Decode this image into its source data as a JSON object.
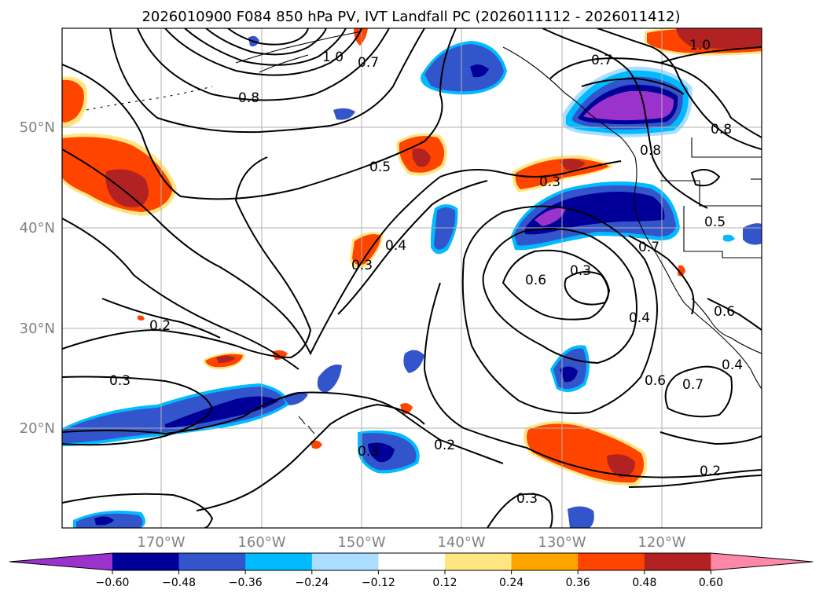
{
  "title": "2026010900 F084 850 hPa PV, IVT Landfall PC (2026011112 - 2026011412)",
  "lat_labels": [
    "50°N",
    "40°N",
    "30°N",
    "20°N"
  ],
  "lon_labels": [
    "170°W",
    "160°W",
    "150°W",
    "140°W",
    "130°W",
    "120°W"
  ],
  "colorbar": {
    "colors": [
      "#9933cc",
      "#000099",
      "#3355cc",
      "#00bbff",
      "#aaddff",
      "#ffffff",
      "#ffe680",
      "#ffa500",
      "#ff4400",
      "#b22222",
      "#ff88aa"
    ],
    "tick_labels": [
      "−0.60",
      "−0.48",
      "−0.36",
      "−0.24",
      "−0.12",
      "0.12",
      "0.24",
      "0.36",
      "0.48",
      "0.60"
    ]
  },
  "contour_labels": [
    {
      "text": "1.0"
    },
    {
      "text": "1.0"
    },
    {
      "text": "0.7"
    },
    {
      "text": "0.8"
    },
    {
      "text": "0.7"
    },
    {
      "text": "0.8"
    },
    {
      "text": "0.5"
    },
    {
      "text": "0.3"
    },
    {
      "text": "0.4"
    },
    {
      "text": "0.3"
    },
    {
      "text": "0.6"
    },
    {
      "text": "0.3"
    },
    {
      "text": "0.7"
    },
    {
      "text": "0.5"
    },
    {
      "text": "0.8"
    },
    {
      "text": "0.2"
    },
    {
      "text": "0.3"
    },
    {
      "text": "0.4"
    },
    {
      "text": "0.6"
    },
    {
      "text": "0.7"
    },
    {
      "text": "0.6"
    },
    {
      "text": "0.4"
    },
    {
      "text": "0.3"
    },
    {
      "text": "0.2"
    },
    {
      "text": "0.3"
    },
    {
      "text": "0.2"
    }
  ]
}
